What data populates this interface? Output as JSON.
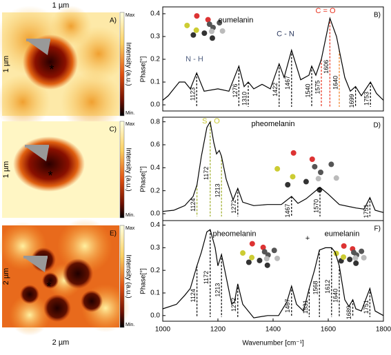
{
  "chart_data": [
    {
      "type": "image",
      "label": "A)",
      "scale_top": "1 µm",
      "scale_left": "1 µm",
      "colorbar_max": "Max",
      "colorbar_min": "Min.",
      "colorbar_label": "Intensity (a.u.)",
      "marker": "*"
    },
    {
      "type": "line",
      "label": "B)",
      "ylabel": "Phase[°]",
      "xlim": [
        1000,
        1800
      ],
      "ylim": [
        -0.027,
        0.43
      ],
      "yticks": [
        {
          "value": 0,
          "label": "0.0"
        },
        {
          "value": 0.1,
          "label": "0.1"
        },
        {
          "value": 0.2,
          "label": "0.2"
        },
        {
          "value": 0.3,
          "label": "0.3"
        },
        {
          "value": 0.4,
          "label": "0.4"
        }
      ],
      "x": [
        1000,
        1020,
        1040,
        1060,
        1080,
        1100,
        1123,
        1150,
        1200,
        1240,
        1276,
        1295,
        1310,
        1330,
        1360,
        1390,
        1422,
        1440,
        1467,
        1500,
        1530,
        1540,
        1555,
        1575,
        1606,
        1630,
        1660,
        1680,
        1699,
        1720,
        1753,
        1775,
        1800
      ],
      "values": [
        0.02,
        0.04,
        0.07,
        0.1,
        0.1,
        0.07,
        0.14,
        0.06,
        0.07,
        0.06,
        0.17,
        0.08,
        0.1,
        0.07,
        0.09,
        0.07,
        0.18,
        0.12,
        0.24,
        0.11,
        0.13,
        0.17,
        0.13,
        0.2,
        0.38,
        0.3,
        0.12,
        0.06,
        0.08,
        0.04,
        0.1,
        0.05,
        0.02
      ],
      "color": "#000000",
      "peaks": [
        1123,
        1276,
        1310,
        1422,
        1467,
        1540,
        1575,
        1606,
        1640,
        1699,
        1753
      ],
      "peak_colors": [
        "#000",
        "#000",
        "#000",
        "#000",
        "#000",
        "#000",
        "#e8301c",
        "#e8301c",
        "#f07a1a",
        "#000",
        "#000"
      ],
      "annotations": [
        {
          "text": "eumelanin",
          "color": "#000"
        },
        {
          "text": "N - H",
          "color": "#4f5f80"
        },
        {
          "text": "C - N",
          "color": "#2e3b60"
        },
        {
          "text": "C = O",
          "color": "#e8301c"
        }
      ]
    },
    {
      "type": "image",
      "label": "C)",
      "scale_left": "1 µm",
      "colorbar_max": "Max",
      "colorbar_min": "Min.",
      "colorbar_label": "Intensity (a.u.)",
      "marker": "*"
    },
    {
      "type": "line",
      "label": "D)",
      "ylabel": "Phase[°]",
      "xlim": [
        1000,
        1800
      ],
      "ylim": [
        -0.06,
        0.84
      ],
      "yticks": [
        {
          "value": 0,
          "label": "0.0"
        },
        {
          "value": 0.2,
          "label": "0.2"
        },
        {
          "value": 0.4,
          "label": "0.4"
        },
        {
          "value": 0.6,
          "label": "0.6"
        },
        {
          "value": 0.8,
          "label": "0.8"
        }
      ],
      "x": [
        1000,
        1040,
        1080,
        1110,
        1124,
        1140,
        1160,
        1172,
        1185,
        1195,
        1205,
        1213,
        1230,
        1255,
        1272,
        1290,
        1330,
        1380,
        1430,
        1467,
        1490,
        1520,
        1570,
        1600,
        1640,
        1700,
        1730,
        1751,
        1770,
        1800
      ],
      "values": [
        0.02,
        0.03,
        0.07,
        0.15,
        0.25,
        0.5,
        0.75,
        0.8,
        0.62,
        0.52,
        0.55,
        0.5,
        0.3,
        0.12,
        0.22,
        0.1,
        0.07,
        0.08,
        0.08,
        0.15,
        0.09,
        0.13,
        0.23,
        0.17,
        0.08,
        0.05,
        0.04,
        0.14,
        0.03,
        0.01
      ],
      "color": "#000000",
      "peaks": [
        1124,
        1172,
        1213,
        1272,
        1467,
        1570,
        1751
      ],
      "peak_colors": [
        "#9aaa20",
        "#9aaa20",
        "#9aaa20",
        "#000",
        "#000",
        "#000",
        "#000"
      ],
      "annotations": [
        {
          "text": "pheomelanin",
          "color": "#000"
        },
        {
          "text": "S - O",
          "color": "#c9c830"
        }
      ]
    },
    {
      "type": "image",
      "label": "E)",
      "scale_left": "2 µm",
      "scale_bottom": "2 µm",
      "colorbar_max": "Max",
      "colorbar_min": "Min.",
      "colorbar_label": "Intensity (a.u.)",
      "marker": "*"
    },
    {
      "type": "line",
      "label": "F)",
      "ylabel": "Phase[°]",
      "xlabel": "Wavenumber [cm⁻¹]",
      "xlim": [
        1000,
        1800
      ],
      "ylim": [
        -0.025,
        0.42
      ],
      "yticks": [
        {
          "value": 0,
          "label": "0.0"
        },
        {
          "value": 0.1,
          "label": "0.1"
        },
        {
          "value": 0.2,
          "label": "0.2"
        },
        {
          "value": 0.3,
          "label": "0.3"
        },
        {
          "value": 0.4,
          "label": "0.4"
        }
      ],
      "xticks": [
        1000,
        1200,
        1400,
        1600,
        1800
      ],
      "x": [
        1000,
        1050,
        1080,
        1100,
        1124,
        1140,
        1160,
        1172,
        1190,
        1200,
        1213,
        1225,
        1250,
        1260,
        1272,
        1290,
        1330,
        1380,
        1420,
        1450,
        1467,
        1485,
        1510,
        1531,
        1550,
        1568,
        1590,
        1612,
        1625,
        1640,
        1660,
        1675,
        1689,
        1700,
        1720,
        1751,
        1770,
        1800
      ],
      "values": [
        0.03,
        0.05,
        0.09,
        0.12,
        0.22,
        0.28,
        0.37,
        0.38,
        0.3,
        0.22,
        0.27,
        0.2,
        0.05,
        0.06,
        0.14,
        0.05,
        -0.01,
        0.0,
        0.0,
        0.06,
        0.13,
        0.05,
        0.02,
        0.12,
        0.2,
        0.29,
        0.3,
        0.3,
        0.28,
        0.22,
        0.07,
        0.04,
        0.07,
        0.03,
        0.02,
        0.12,
        0.02,
        0.0
      ],
      "color": "#000000",
      "peaks": [
        1124,
        1172,
        1213,
        1272,
        1467,
        1531,
        1568,
        1612,
        1640,
        1689,
        1751
      ],
      "peak_colors": [
        "#000",
        "#000",
        "#000",
        "#000",
        "#000",
        "#000",
        "#000",
        "#000",
        "#000",
        "#000",
        "#000"
      ],
      "annotations": [
        {
          "text": "pheomelanin",
          "color": "#000"
        },
        {
          "text": "+",
          "color": "#000"
        },
        {
          "text": "eumelanin",
          "color": "#000"
        }
      ]
    }
  ]
}
